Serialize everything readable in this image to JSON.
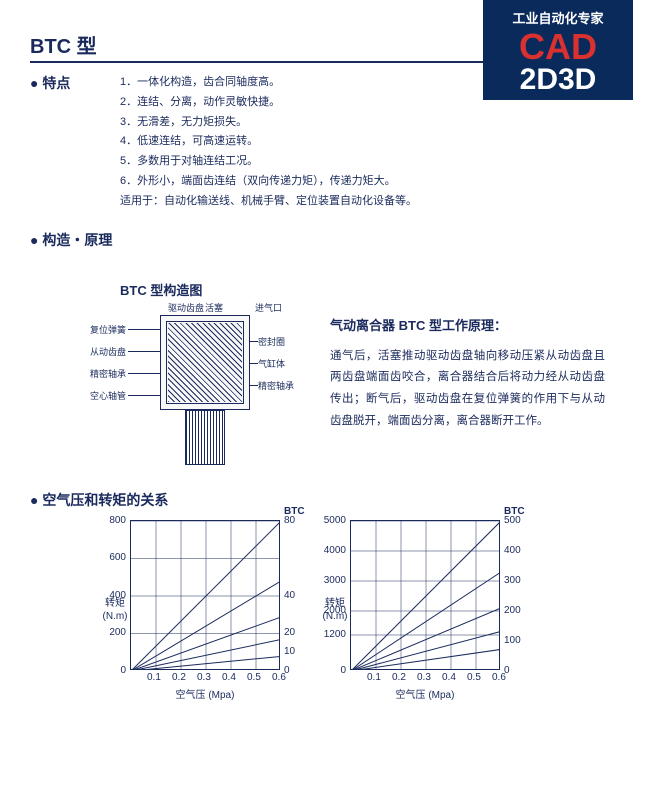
{
  "logo": {
    "tag": "工业自动化专家",
    "l1": "CAD",
    "l2": "2D3D"
  },
  "title": "BTC 型",
  "section_features": {
    "label": "● 特点",
    "items": [
      "1．一体化构造，齿合同轴度高。",
      "2．连结、分离，动作灵敏快捷。",
      "3．无滑差，无力矩损失。",
      "4．低速连结，可高速运转。",
      "5．多数用于对轴连结工况。",
      "6．外形小，端面齿连结（双向传递力矩），传递力矩大。",
      "适用于：自动化输送线、机械手臂、定位装置自动化设备等。"
    ]
  },
  "section_structure": {
    "label": "● 构造・原理",
    "diag_title": "BTC 型构造图",
    "labels_left": [
      "复位弹簧",
      "从动齿盘",
      "精密轴承",
      "空心轴管"
    ],
    "labels_right_top": [
      "驱动齿盘",
      "活塞",
      "进气口"
    ],
    "labels_right": [
      "密封圈",
      "气缸体",
      "精密轴承"
    ],
    "principle_title": "气动离合器 BTC 型工作原理：",
    "principle_body": "通气后，活塞推动驱动齿盘轴向移动压紧从动齿盘且两齿盘端面齿咬合，离合器结合后将动力经从动齿盘传出；断气后，驱动齿盘在复位弹簧的作用下与从动齿盘脱开，端面齿分离，离合器断开工作。"
  },
  "section_charts": {
    "label": "● 空气压和转矩的关系",
    "y_axis_label": "转矩\n(N.m)",
    "x_axis_label": "空气压  (Mpa)",
    "right_label": "BTC",
    "chart1": {
      "xlim": [
        0,
        0.6
      ],
      "ylim_left": [
        0,
        800
      ],
      "ylim_right": [
        0,
        80
      ],
      "xticks": [
        0.1,
        0.2,
        0.3,
        0.4,
        0.5,
        0.6
      ],
      "yticks_left": [
        0,
        200,
        400,
        600,
        800
      ],
      "yticks_right": [
        0,
        10,
        20,
        40,
        80
      ],
      "line_color": "#1a2a5c",
      "grid_color": "#1a2a5c",
      "bg": "#ffffff",
      "lines": [
        {
          "slope": 1333
        },
        {
          "slope": 800
        },
        {
          "slope": 480
        },
        {
          "slope": 280
        },
        {
          "slope": 130
        }
      ]
    },
    "chart2": {
      "xlim": [
        0,
        0.6
      ],
      "ylim_left": [
        0,
        5000
      ],
      "ylim_right": [
        0,
        500
      ],
      "xticks": [
        0.1,
        0.2,
        0.3,
        0.4,
        0.5,
        0.6
      ],
      "yticks_left": [
        0,
        1200,
        2000,
        3000,
        4000,
        5000
      ],
      "yticks_right": [
        0,
        100,
        200,
        300,
        400,
        500
      ],
      "line_color": "#1a2a5c",
      "grid_color": "#1a2a5c",
      "bg": "#ffffff",
      "lines": [
        {
          "slope": 8333
        },
        {
          "slope": 5500
        },
        {
          "slope": 3500
        },
        {
          "slope": 2200
        },
        {
          "slope": 1200
        }
      ]
    }
  }
}
